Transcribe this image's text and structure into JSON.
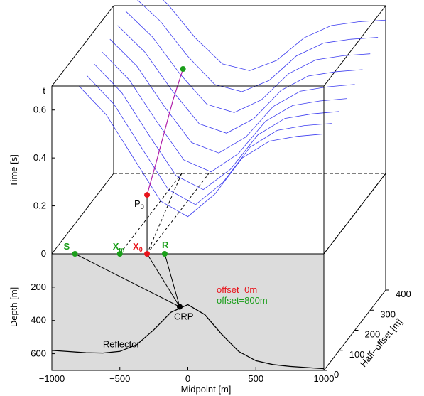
{
  "chart_data": {
    "type": "seismic3d",
    "time_axis_letter": "t",
    "time_label": "Time [s]",
    "depth_label": "Depth [m]",
    "x_label": "Midpoint [m]",
    "offset_label": "Half−offset [m]",
    "xlim": [
      -1000,
      1000
    ],
    "xticks": [
      {
        "value": -1000,
        "label": "−1000"
      },
      {
        "value": -500,
        "label": "−500"
      },
      0,
      500,
      1000
    ],
    "tlim": [
      0,
      0.7
    ],
    "tticks": [
      0,
      0.2,
      0.4,
      0.6
    ],
    "depthlim": [
      0,
      700
    ],
    "depthticks": [
      200,
      400,
      600
    ],
    "hlim": [
      0,
      400
    ],
    "hticks": [
      0,
      100,
      200,
      300,
      400
    ],
    "curve_color": "#3b3bf0",
    "x": [
      -800,
      -600,
      -400,
      -200,
      0,
      200,
      400,
      600,
      800,
      1000
    ],
    "series": [
      {
        "half_offset": 0,
        "values": [
          0.7,
          0.58,
          0.4,
          0.22,
          0.155,
          0.25,
          0.4,
          0.47,
          0.49,
          0.5
        ]
      },
      {
        "half_offset": 50,
        "values": [
          0.702,
          0.582,
          0.403,
          0.226,
          0.163,
          0.255,
          0.403,
          0.473,
          0.493,
          0.502
        ]
      },
      {
        "half_offset": 100,
        "values": [
          0.707,
          0.589,
          0.412,
          0.242,
          0.184,
          0.269,
          0.412,
          0.481,
          0.5,
          0.51
        ]
      },
      {
        "half_offset": 150,
        "values": [
          0.716,
          0.599,
          0.427,
          0.266,
          0.216,
          0.292,
          0.427,
          0.493,
          0.512,
          0.522
        ]
      },
      {
        "half_offset": 200,
        "values": [
          0.728,
          0.614,
          0.447,
          0.297,
          0.253,
          0.32,
          0.447,
          0.511,
          0.529,
          0.539
        ]
      },
      {
        "half_offset": 250,
        "values": [
          0.743,
          0.632,
          0.472,
          0.333,
          0.294,
          0.354,
          0.472,
          0.532,
          0.55,
          0.559
        ]
      },
      {
        "half_offset": 300,
        "values": [
          0.762,
          0.653,
          0.5,
          0.372,
          0.338,
          0.391,
          0.5,
          0.558,
          0.575,
          0.583
        ]
      },
      {
        "half_offset": 350,
        "values": [
          0.783,
          0.677,
          0.532,
          0.413,
          0.383,
          0.43,
          0.532,
          0.586,
          0.602,
          0.61
        ]
      },
      {
        "half_offset": 400,
        "values": [
          0.806,
          0.705,
          0.566,
          0.457,
          0.429,
          0.472,
          0.566,
          0.617,
          0.633,
          0.64
        ]
      }
    ],
    "reflector": {
      "label": "Reflector",
      "x": [
        -1000,
        -875,
        -750,
        -625,
        -500,
        -375,
        -250,
        -125,
        0,
        125,
        250,
        375,
        500,
        625,
        750,
        875,
        1000
      ],
      "depth": [
        580,
        587,
        594,
        596,
        586,
        545,
        456,
        351,
        305,
        365,
        484,
        587,
        642,
        665,
        676,
        683,
        690
      ]
    },
    "points": [
      {
        "label": "S",
        "x": -830,
        "depth": 0,
        "color": "#1a9e1a"
      },
      {
        "label": "X",
        "sub": "m",
        "x": -500,
        "depth": 0,
        "color": "#1a9e1a"
      },
      {
        "label": "X",
        "sub": "0",
        "x": -300,
        "depth": 0,
        "color": "#e8141b"
      },
      {
        "label": "R",
        "x": -170,
        "depth": 0,
        "color": "#1a9e1a"
      },
      {
        "label": "CRP",
        "x": -60,
        "depth": 318,
        "color": "#000000"
      }
    ],
    "p0": {
      "label": "P",
      "sub": "0",
      "x": -300,
      "half_offset": 0,
      "t": 0.246,
      "color": "#e8141b"
    },
    "trajectory": {
      "color": "#b01ca8",
      "end_color": "#1a9e1a",
      "half_offset": [
        0,
        100,
        200,
        300,
        400
      ],
      "x": [
        -300,
        -350,
        -400,
        -450,
        -490
      ],
      "t": [
        0.246,
        0.29,
        0.34,
        0.39,
        0.436
      ]
    },
    "legend": [
      {
        "text": "offset=0m",
        "color": "#e8141b"
      },
      {
        "text": "offset=800m",
        "color": "#1a9e1a"
      }
    ]
  }
}
